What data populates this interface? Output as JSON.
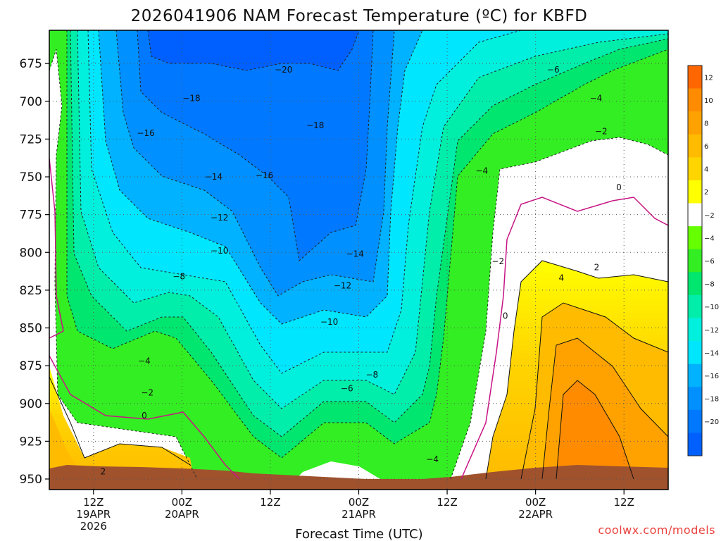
{
  "chart_data": {
    "type": "heatmap",
    "title": "2026041906 NAM Forecast Temperature (ºC) for KBFD",
    "xlabel": "Forecast Time (UTC)",
    "ylabel": "",
    "y_axis": {
      "ticks": [
        "675",
        "700",
        "725",
        "750",
        "775",
        "800",
        "825",
        "850",
        "875",
        "900",
        "925",
        "950"
      ],
      "values": [
        675,
        700,
        725,
        750,
        775,
        800,
        825,
        850,
        875,
        900,
        925,
        950
      ],
      "range": [
        653,
        957
      ],
      "inverted": true
    },
    "x_axis": {
      "ticks": [
        {
          "hour": 6,
          "lines": [
            "12Z",
            "19APR",
            "2026"
          ]
        },
        {
          "hour": 18,
          "lines": [
            "00Z",
            "20APR"
          ]
        },
        {
          "hour": 30,
          "lines": [
            "12Z"
          ]
        },
        {
          "hour": 42,
          "lines": [
            "00Z",
            "21APR"
          ]
        },
        {
          "hour": 54,
          "lines": [
            "12Z"
          ]
        },
        {
          "hour": 66,
          "lines": [
            "00Z",
            "22APR"
          ]
        },
        {
          "hour": 78,
          "lines": [
            "12Z"
          ]
        }
      ],
      "range": [
        0,
        84
      ]
    },
    "colorbar": {
      "labels": [
        "12",
        "10",
        "8",
        "6",
        "4",
        "2",
        "−2",
        "−4",
        "−6",
        "−8",
        "−10",
        "−12",
        "−14",
        "−16",
        "−18",
        "−20"
      ],
      "colors": [
        "#ff6600",
        "#ff8c00",
        "#ffa200",
        "#ffbb00",
        "#ffd500",
        "#ffff00",
        "#ffffff",
        "#66ff00",
        "#33ee22",
        "#00e66e",
        "#00eeaa",
        "#00f0dd",
        "#00e6ff",
        "#00b2ff",
        "#0090ff",
        "#0078ff",
        "#0060ff"
      ],
      "label_precision": "2 degC bands"
    },
    "contour_labels": [
      {
        "text": "−20",
        "hour": 31.8,
        "p": 679
      },
      {
        "text": "−18",
        "hour": 19.3,
        "p": 698
      },
      {
        "text": "−18",
        "hour": 36.1,
        "p": 716
      },
      {
        "text": "−16",
        "hour": 13.1,
        "p": 721
      },
      {
        "text": "−16",
        "hour": 29.2,
        "p": 749
      },
      {
        "text": "−14",
        "hour": 22.3,
        "p": 750
      },
      {
        "text": "−14",
        "hour": 41.5,
        "p": 801
      },
      {
        "text": "−12",
        "hour": 23.1,
        "p": 777
      },
      {
        "text": "−12",
        "hour": 39.8,
        "p": 822
      },
      {
        "text": "−10",
        "hour": 23.1,
        "p": 799
      },
      {
        "text": "−10",
        "hour": 38.0,
        "p": 846
      },
      {
        "text": "−8",
        "hour": 17.6,
        "p": 816
      },
      {
        "text": "−8",
        "hour": 43.8,
        "p": 881
      },
      {
        "text": "−6",
        "hour": 40.4,
        "p": 890
      },
      {
        "text": "−6",
        "hour": 68.4,
        "p": 679
      },
      {
        "text": "−4",
        "hour": 12.9,
        "p": 872
      },
      {
        "text": "−4",
        "hour": 58.7,
        "p": 746
      },
      {
        "text": "−4",
        "hour": 52.0,
        "p": 937
      },
      {
        "text": "−4",
        "hour": 74.2,
        "p": 698
      },
      {
        "text": "−2",
        "hour": 13.3,
        "p": 893
      },
      {
        "text": "−2",
        "hour": 60.9,
        "p": 806
      },
      {
        "text": "−2",
        "hour": 74.9,
        "p": 720
      },
      {
        "text": "0",
        "hour": 12.9,
        "p": 908
      },
      {
        "text": "0",
        "hour": 61.9,
        "p": 842
      },
      {
        "text": "0",
        "hour": 77.3,
        "p": 757
      },
      {
        "text": "2",
        "hour": 7.3,
        "p": 945
      },
      {
        "text": "2",
        "hour": 74.3,
        "p": 810
      },
      {
        "text": "4",
        "hour": 69.5,
        "p": 817
      }
    ]
  },
  "credit": "coolwx.com/models"
}
